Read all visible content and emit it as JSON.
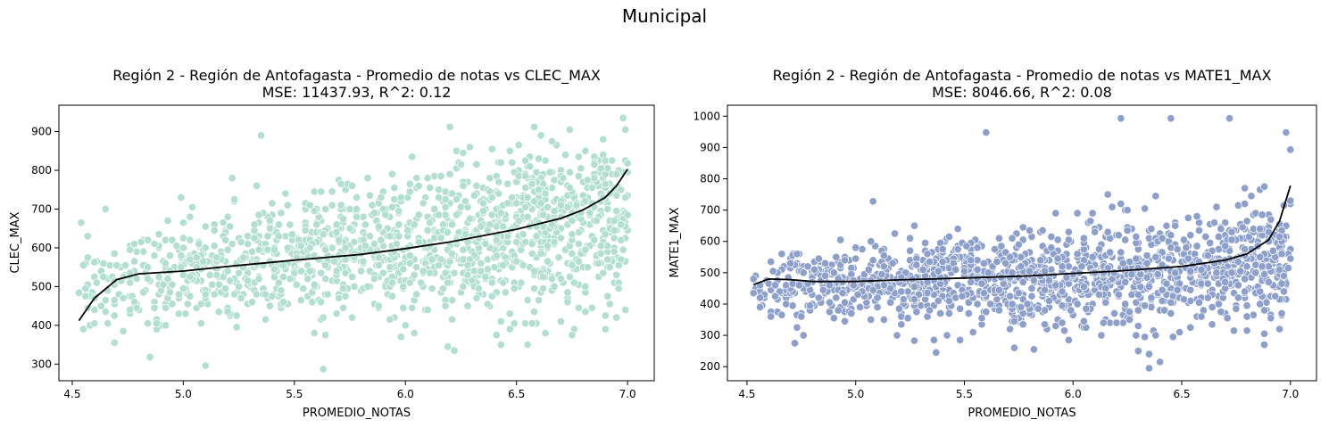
{
  "suptitle": "Municipal",
  "chart_data": [
    {
      "type": "scatter",
      "title_line1": "Región 2 - Región de Antofagasta - Promedio de notas vs CLEC_MAX",
      "title_line2": "MSE: 11437.93, R^2: 0.12",
      "xlabel": "PROMEDIO_NOTAS",
      "ylabel": "CLEC_MAX",
      "xlim": [
        4.44,
        7.12
      ],
      "ylim": [
        257,
        968
      ],
      "xticks": [
        4.5,
        5.0,
        5.5,
        6.0,
        6.5,
        7.0
      ],
      "xtick_labels": [
        "4.5",
        "5.0",
        "5.5",
        "6.0",
        "6.5",
        "7.0"
      ],
      "yticks": [
        300,
        400,
        500,
        600,
        700,
        800,
        900
      ],
      "ytick_labels": [
        "300",
        "400",
        "500",
        "600",
        "700",
        "800",
        "900"
      ],
      "point_color": "#b2dfd2",
      "line_color": "#000000",
      "grid": false,
      "fit_curve": {
        "x": [
          4.53,
          4.6,
          4.7,
          4.8,
          5.0,
          5.2,
          5.5,
          5.8,
          6.0,
          6.2,
          6.5,
          6.7,
          6.8,
          6.9,
          6.95,
          7.0
        ],
        "y": [
          412,
          470,
          518,
          533,
          540,
          552,
          568,
          583,
          598,
          615,
          648,
          676,
          698,
          730,
          760,
          803
        ]
      },
      "scatter_summary": {
        "x_range": [
          4.53,
          7.0
        ],
        "y_center": [
          500,
          520,
          545,
          560,
          575,
          590,
          610,
          630,
          650,
          670
        ],
        "y_spread": 85,
        "outliers": [
          {
            "x": 4.53,
            "y": 484
          },
          {
            "x": 4.6,
            "y": 563
          },
          {
            "x": 4.65,
            "y": 700
          },
          {
            "x": 5.1,
            "y": 296
          },
          {
            "x": 5.63,
            "y": 287
          },
          {
            "x": 5.35,
            "y": 890
          },
          {
            "x": 6.2,
            "y": 912
          },
          {
            "x": 6.58,
            "y": 912
          },
          {
            "x": 6.98,
            "y": 935
          },
          {
            "x": 7.0,
            "y": 818
          },
          {
            "x": 4.85,
            "y": 318
          },
          {
            "x": 6.55,
            "y": 350
          }
        ]
      }
    },
    {
      "type": "scatter",
      "title_line1": "Región 2 - Región de Antofagasta - Promedio de notas vs MATE1_MAX",
      "title_line2": "MSE: 8046.66, R^2: 0.08",
      "xlabel": "PROMEDIO_NOTAS",
      "ylabel": "MATE1_MAX",
      "xlim": [
        4.41,
        7.12
      ],
      "ylim": [
        155,
        1035
      ],
      "xticks": [
        4.5,
        5.0,
        5.5,
        6.0,
        6.5,
        7.0
      ],
      "xtick_labels": [
        "4.5",
        "5.0",
        "5.5",
        "6.0",
        "6.5",
        "7.0"
      ],
      "yticks": [
        200,
        300,
        400,
        500,
        600,
        700,
        800,
        900,
        1000
      ],
      "ytick_labels": [
        "200",
        "300",
        "400",
        "500",
        "600",
        "700",
        "800",
        "900",
        "1000"
      ],
      "point_color": "#8da0cb",
      "line_color": "#000000",
      "grid": false,
      "fit_curve": {
        "x": [
          4.53,
          4.6,
          4.7,
          4.8,
          5.0,
          5.2,
          5.5,
          5.8,
          6.0,
          6.2,
          6.5,
          6.7,
          6.8,
          6.9,
          6.95,
          7.0
        ],
        "y": [
          462,
          480,
          478,
          472,
          472,
          477,
          483,
          490,
          498,
          505,
          520,
          540,
          560,
          605,
          665,
          778
        ]
      },
      "scatter_summary": {
        "x_range": [
          4.53,
          7.0
        ],
        "y_center": [
          460,
          465,
          470,
          472,
          478,
          485,
          492,
          500,
          510,
          525
        ],
        "y_spread": 75,
        "outliers": [
          {
            "x": 4.53,
            "y": 480
          },
          {
            "x": 5.6,
            "y": 948
          },
          {
            "x": 6.22,
            "y": 993
          },
          {
            "x": 6.45,
            "y": 993
          },
          {
            "x": 6.72,
            "y": 993
          },
          {
            "x": 6.98,
            "y": 948
          },
          {
            "x": 6.35,
            "y": 195
          },
          {
            "x": 5.73,
            "y": 260
          },
          {
            "x": 5.08,
            "y": 728
          },
          {
            "x": 7.0,
            "y": 893
          },
          {
            "x": 5.27,
            "y": 283
          }
        ]
      }
    }
  ]
}
